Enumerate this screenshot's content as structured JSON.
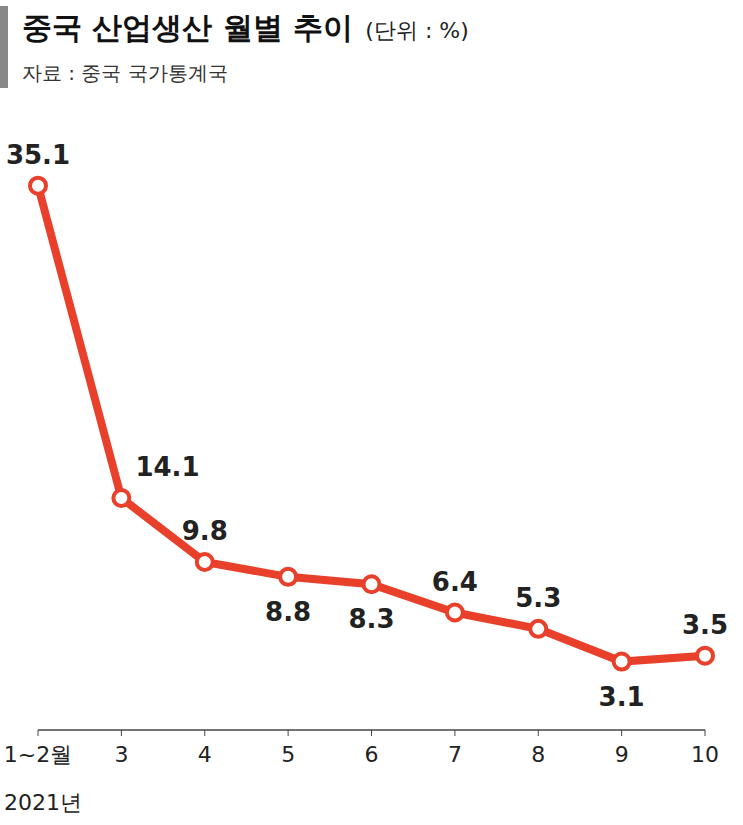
{
  "chart_data": {
    "type": "line",
    "title": "중국 산업생산 월별 추이",
    "subtitle": "(단위 : %)",
    "source": "자료 : 중국 국가통계국",
    "annotation": "2021년",
    "categories": [
      "1~2월",
      "3",
      "4",
      "5",
      "6",
      "7",
      "8",
      "9",
      "10"
    ],
    "values": [
      35.1,
      14.1,
      9.8,
      8.8,
      8.3,
      6.4,
      5.3,
      3.1,
      3.5
    ],
    "color": "#e8402a",
    "marker": "circle",
    "ylim": [
      -1.5,
      37.5
    ],
    "data_labels": true,
    "tick_labels": "x",
    "grid": false
  }
}
